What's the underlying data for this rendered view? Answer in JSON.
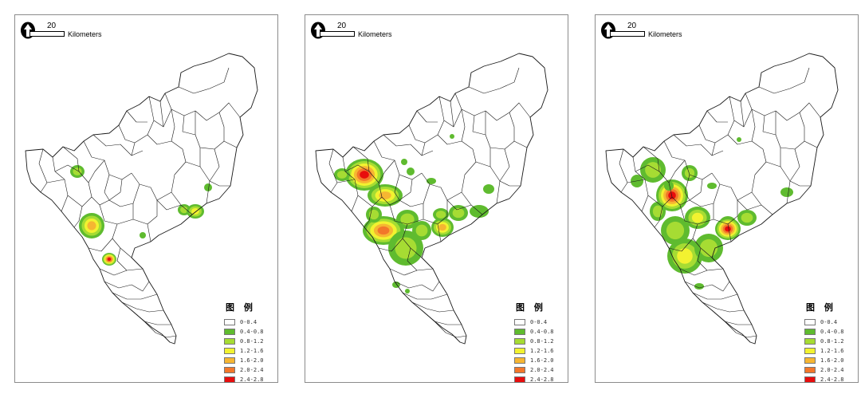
{
  "scale_bar": {
    "value": "20",
    "unit": "Kilometers"
  },
  "legend": {
    "title": "图 例",
    "classes": [
      {
        "label": "0-0.4",
        "color": "#ffffff"
      },
      {
        "label": "0.4-0.8",
        "color": "#5fbb2f"
      },
      {
        "label": "0.8-1.2",
        "color": "#a6dc33"
      },
      {
        "label": "1.2-1.6",
        "color": "#f2f230"
      },
      {
        "label": "1.6-2.0",
        "color": "#f6b632"
      },
      {
        "label": "2.0-2.4",
        "color": "#f2772a"
      },
      {
        "label": "2.4-2.8",
        "color": "#e80d0d"
      }
    ]
  },
  "map_count": 3,
  "maps": [
    {
      "id": "map-1",
      "hotspots": "few"
    },
    {
      "id": "map-2",
      "hotspots": "many"
    },
    {
      "id": "map-3",
      "hotspots": "many"
    }
  ]
}
